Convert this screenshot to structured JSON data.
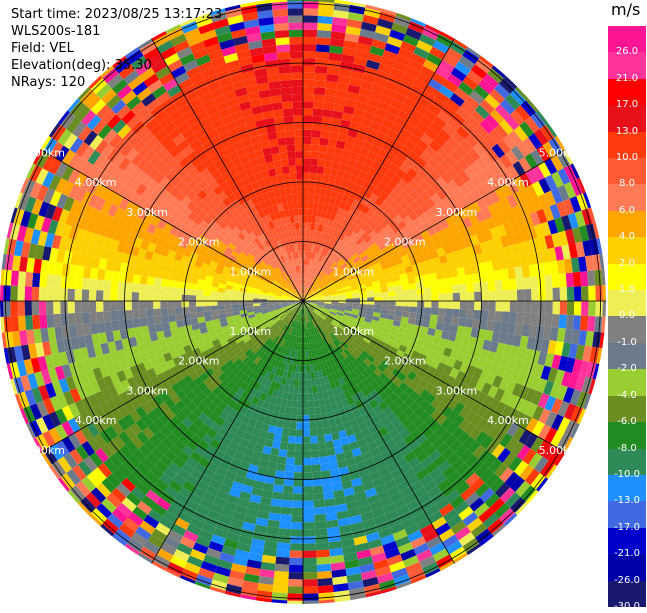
{
  "info": {
    "start_time": "Start time: 2023/08/25 13:17:23",
    "instrument": "WLS200s-181",
    "field": "Field: VEL",
    "elevation": "Elevation(deg): 35.30",
    "nrays": "NRays: 120"
  },
  "colorbar": {
    "unit": "m/s",
    "labels": [
      "26.0",
      "21.0",
      "17.0",
      "13.0",
      "10.0",
      "8.0",
      "6.0",
      "4.0",
      "2.0",
      "1.0",
      "0.0",
      "-1.0",
      "-2.0",
      "-4.0",
      "-6.0",
      "-8.0",
      "-10.0",
      "-13.0",
      "-17.0",
      "-21.0",
      "-26.0",
      "-30.0"
    ],
    "colors": [
      "#ff1493",
      "#ff3399",
      "#ff0000",
      "#e8101a",
      "#ff3a0c",
      "#ff5a33",
      "#ff7a55",
      "#ffa500",
      "#ffd000",
      "#ffff00",
      "#eeee55",
      "#808080",
      "#6c7b8b",
      "#9acd32",
      "#6b8e23",
      "#228b22",
      "#2e8b57",
      "#1e90ff",
      "#4169e1",
      "#0000cd",
      "#0000aa",
      "#191970",
      "#00004d"
    ]
  },
  "rings": [
    "1.00km",
    "2.00km",
    "3.00km",
    "4.00km",
    "5.00km"
  ],
  "chart_data": {
    "type": "heatmap",
    "projection": "polar PPI (plan position indicator)",
    "field": "VEL",
    "units": "m/s",
    "rays": 120,
    "elevation_deg": 35.3,
    "range_rings_km": [
      1.0,
      2.0,
      3.0,
      4.0,
      5.0
    ],
    "colorbar_ticks": [
      26.0,
      21.0,
      17.0,
      13.0,
      10.0,
      8.0,
      6.0,
      4.0,
      2.0,
      1.0,
      0.0,
      -1.0,
      -2.0,
      -4.0,
      -6.0,
      -8.0,
      -10.0,
      -13.0,
      -17.0,
      -21.0,
      -26.0,
      -30.0
    ],
    "approx_field_by_direction_m_s": [
      {
        "direction": "north (top)",
        "value": 13.0
      },
      {
        "direction": "north near-range",
        "value": 6.0
      },
      {
        "direction": "east / west",
        "value": 0.0
      },
      {
        "direction": "south near-range",
        "value": -6.0
      },
      {
        "direction": "south (bottom)",
        "value": -10.0
      }
    ],
    "noisy_beyond_range_km": 4.0
  }
}
